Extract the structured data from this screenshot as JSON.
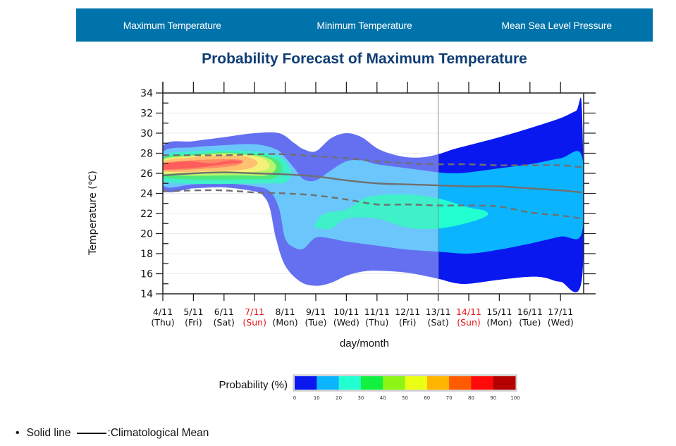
{
  "nav": {
    "tabs": [
      {
        "label": "Maximum Temperature"
      },
      {
        "label": "Minimum Temperature"
      },
      {
        "label": "Mean Sea Level Pressure"
      }
    ]
  },
  "footnote": {
    "bullet": "•",
    "text_before": "Solid line",
    "text_after": ":Climatological Mean"
  },
  "chart_data": {
    "type": "area",
    "title": "Probability Forecast of Maximum Temperature",
    "xlabel": "day/month",
    "ylabel": "Temperature (℃)",
    "ylim": [
      14,
      34
    ],
    "yticks": [
      14,
      16,
      18,
      20,
      22,
      24,
      26,
      28,
      30,
      32,
      34
    ],
    "grid": true,
    "x_categories": [
      {
        "date": "4/11",
        "day": "(Thu)",
        "holiday": false
      },
      {
        "date": "5/11",
        "day": "(Fri)",
        "holiday": false
      },
      {
        "date": "6/11",
        "day": "(Sat)",
        "holiday": false
      },
      {
        "date": "7/11",
        "day": "(Sun)",
        "holiday": true
      },
      {
        "date": "8/11",
        "day": "(Mon)",
        "holiday": false
      },
      {
        "date": "9/11",
        "day": "(Tue)",
        "holiday": false
      },
      {
        "date": "10/11",
        "day": "(Wed)",
        "holiday": false
      },
      {
        "date": "11/11",
        "day": "(Thu)",
        "holiday": false
      },
      {
        "date": "12/11",
        "day": "(Fri)",
        "holiday": false
      },
      {
        "date": "13/11",
        "day": "(Sat)",
        "holiday": false
      },
      {
        "date": "14/11",
        "day": "(Sun)",
        "holiday": true
      },
      {
        "date": "15/11",
        "day": "(Mon)",
        "holiday": false
      },
      {
        "date": "16/11",
        "day": "(Tue)",
        "holiday": false
      },
      {
        "date": "17/11",
        "day": "(Wed)",
        "holiday": false
      }
    ],
    "holiday_color": "#e8141b",
    "divider_day_index": 9,
    "x_extent": [
      0,
      13.7
    ],
    "probability_bands": [
      {
        "level": "0-10%",
        "color_early": "#6470f0",
        "color_late": "#0a18f0",
        "upper": [
          [
            0,
            28.7
          ],
          [
            1,
            29.2
          ],
          [
            2,
            29.6
          ],
          [
            3,
            30.0
          ],
          [
            3.8,
            30.0
          ],
          [
            4.3,
            29.0
          ],
          [
            4.6,
            28.4
          ],
          [
            5,
            28.2
          ],
          [
            5.5,
            29.5
          ],
          [
            6,
            30.0
          ],
          [
            6.5,
            29.6
          ],
          [
            7,
            28.5
          ],
          [
            7.5,
            27.9
          ],
          [
            8,
            27.6
          ],
          [
            8.5,
            27.6
          ],
          [
            9,
            27.9
          ],
          [
            9.5,
            28.4
          ],
          [
            10,
            28.8
          ],
          [
            11,
            29.6
          ],
          [
            12,
            30.5
          ],
          [
            13,
            31.5
          ],
          [
            13.5,
            32.2
          ],
          [
            13.7,
            32.3
          ]
        ],
        "lower": [
          [
            13.7,
            15.5
          ],
          [
            13,
            15.2
          ],
          [
            12.5,
            15.6
          ],
          [
            12,
            15.7
          ],
          [
            11,
            15.4
          ],
          [
            10,
            15.0
          ],
          [
            9.5,
            15.1
          ],
          [
            9,
            15.5
          ],
          [
            8,
            16.1
          ],
          [
            7,
            16.3
          ],
          [
            6.5,
            16.2
          ],
          [
            6,
            15.8
          ],
          [
            5.5,
            15.1
          ],
          [
            5,
            14.8
          ],
          [
            4.5,
            15.2
          ],
          [
            4,
            16.8
          ],
          [
            3.7,
            19.5
          ],
          [
            3.5,
            22.5
          ],
          [
            3.3,
            23.7
          ],
          [
            3,
            24.2
          ],
          [
            2,
            24.6
          ],
          [
            1,
            24.5
          ],
          [
            0,
            24.4
          ]
        ]
      },
      {
        "level": "10-20%",
        "color_early": "#6bc7fb",
        "color_late": "#0ab4ff",
        "upper": [
          [
            0,
            28.1
          ],
          [
            1,
            28.6
          ],
          [
            2,
            28.8
          ],
          [
            3,
            28.9
          ],
          [
            3.7,
            28.4
          ],
          [
            4,
            27.6
          ],
          [
            4.3,
            26.5
          ],
          [
            4.6,
            25.4
          ],
          [
            5,
            25.3
          ],
          [
            5.5,
            26.3
          ],
          [
            6,
            27.2
          ],
          [
            6.5,
            27.3
          ],
          [
            7,
            26.9
          ],
          [
            8,
            26.5
          ],
          [
            9,
            26.1
          ],
          [
            9.5,
            26.0
          ],
          [
            10,
            26.1
          ],
          [
            11,
            26.5
          ],
          [
            12,
            26.9
          ],
          [
            13,
            27.5
          ],
          [
            13.7,
            27.7
          ]
        ],
        "lower": [
          [
            13.7,
            20.1
          ],
          [
            13,
            19.7
          ],
          [
            12,
            19.0
          ],
          [
            11,
            18.4
          ],
          [
            10,
            18.0
          ],
          [
            9,
            18.2
          ],
          [
            8,
            18.4
          ],
          [
            7,
            18.8
          ],
          [
            6,
            19.2
          ],
          [
            5.5,
            19.5
          ],
          [
            5,
            19.6
          ],
          [
            4.6,
            18.5
          ],
          [
            4.3,
            18.6
          ],
          [
            4,
            19.5
          ],
          [
            3.8,
            22.5
          ],
          [
            3.5,
            24.2
          ],
          [
            3,
            24.7
          ],
          [
            2,
            25.0
          ],
          [
            1,
            24.9
          ],
          [
            0,
            24.8
          ]
        ]
      },
      {
        "level": "20-30%",
        "color_early": "#3ff0c8",
        "color_late": "#22ffd0",
        "upper": [
          [
            0,
            27.7
          ],
          [
            1,
            28.2
          ],
          [
            2,
            28.3
          ],
          [
            3,
            28.2
          ],
          [
            3.7,
            27.8
          ],
          [
            4,
            27.2
          ],
          [
            4.2,
            26.0
          ],
          [
            4,
            25.1
          ],
          [
            3.5,
            25.0
          ],
          [
            0,
            25.2
          ]
        ],
        "extra_blob": [
          [
            5,
            21.1
          ],
          [
            5.3,
            22.0
          ],
          [
            6,
            22.4
          ],
          [
            6.5,
            23.4
          ],
          [
            7,
            23.8
          ],
          [
            8,
            23.9
          ],
          [
            9,
            23.5
          ],
          [
            10,
            22.6
          ],
          [
            10.5,
            22.3
          ],
          [
            10.6,
            21.8
          ],
          [
            10,
            21.1
          ],
          [
            9,
            20.5
          ],
          [
            8,
            20.6
          ],
          [
            7,
            21.5
          ],
          [
            6,
            21.5
          ],
          [
            5.5,
            20.5
          ],
          [
            5,
            20.6
          ]
        ]
      },
      {
        "level": "30-40%",
        "color": "#4ce87c",
        "upper": [
          [
            0,
            27.5
          ],
          [
            1,
            27.9
          ],
          [
            2,
            28.1
          ],
          [
            3,
            27.9
          ],
          [
            3.7,
            27.4
          ],
          [
            3.9,
            26.5
          ],
          [
            3.7,
            25.6
          ],
          [
            3,
            25.4
          ],
          [
            0,
            25.6
          ]
        ]
      },
      {
        "level": "40-50%",
        "color": "#b9f56a",
        "upper": [
          [
            0,
            27.4
          ],
          [
            1,
            27.8
          ],
          [
            2,
            28.0
          ],
          [
            3,
            27.8
          ],
          [
            3.5,
            27.4
          ],
          [
            3.7,
            26.6
          ],
          [
            3.4,
            25.8
          ],
          [
            2.5,
            25.8
          ],
          [
            0,
            25.9
          ]
        ]
      },
      {
        "level": "50-60%",
        "color": "#f5f07a",
        "upper": [
          [
            0,
            27.3
          ],
          [
            1,
            27.7
          ],
          [
            2,
            27.9
          ],
          [
            3,
            27.7
          ],
          [
            3.4,
            27.2
          ],
          [
            3.4,
            26.4
          ],
          [
            2.5,
            26.1
          ],
          [
            0,
            26.1
          ]
        ]
      },
      {
        "level": "60-70%",
        "color": "#ffc070",
        "upper": [
          [
            0,
            27.2
          ],
          [
            1,
            27.6
          ],
          [
            2,
            27.8
          ],
          [
            2.8,
            27.6
          ],
          [
            3.1,
            27.0
          ],
          [
            2.7,
            26.4
          ],
          [
            1.5,
            26.2
          ],
          [
            0,
            26.2
          ]
        ]
      },
      {
        "level": "70-80%",
        "color": "#ff8a66",
        "upper": [
          [
            0,
            27.0
          ],
          [
            1,
            27.3
          ],
          [
            2,
            27.4
          ],
          [
            2.6,
            27.3
          ],
          [
            2.4,
            26.8
          ],
          [
            1.5,
            26.5
          ],
          [
            0,
            26.3
          ]
        ]
      },
      {
        "level": "80-90%",
        "color": "#ff5c5c",
        "upper": [
          [
            0,
            26.9
          ],
          [
            0.8,
            27.2
          ],
          [
            1.6,
            27.0
          ],
          [
            2.2,
            27.3
          ],
          [
            2.6,
            27.1
          ],
          [
            2,
            26.9
          ],
          [
            1.2,
            26.6
          ],
          [
            0,
            26.4
          ]
        ]
      }
    ],
    "lines": [
      {
        "name": "Climatological Mean",
        "style": "solid",
        "color": "#707070",
        "values": [
          [
            0,
            25.8
          ],
          [
            1,
            26.0
          ],
          [
            2,
            26.1
          ],
          [
            3,
            26.0
          ],
          [
            4,
            25.9
          ],
          [
            5,
            25.7
          ],
          [
            6,
            25.3
          ],
          [
            7,
            25.0
          ],
          [
            8,
            24.9
          ],
          [
            9,
            24.8
          ],
          [
            10,
            24.7
          ],
          [
            11,
            24.7
          ],
          [
            12,
            24.5
          ],
          [
            13,
            24.3
          ],
          [
            13.7,
            24.1
          ]
        ]
      },
      {
        "name": "Upper dashed",
        "style": "dashed",
        "color": "#707070",
        "values": [
          [
            0,
            27.8
          ],
          [
            1,
            27.8
          ],
          [
            2,
            27.8
          ],
          [
            3,
            27.9
          ],
          [
            4,
            27.9
          ],
          [
            5,
            27.7
          ],
          [
            6,
            27.5
          ],
          [
            7,
            27.2
          ],
          [
            8,
            27.0
          ],
          [
            9,
            26.9
          ],
          [
            10,
            26.9
          ],
          [
            11,
            26.8
          ],
          [
            12,
            26.8
          ],
          [
            13,
            26.8
          ],
          [
            13.7,
            26.6
          ]
        ]
      },
      {
        "name": "Lower dashed",
        "style": "dashed",
        "color": "#707070",
        "values": [
          [
            0,
            24.2
          ],
          [
            1,
            24.3
          ],
          [
            2,
            24.3
          ],
          [
            3,
            24.1
          ],
          [
            4,
            24.0
          ],
          [
            5,
            23.8
          ],
          [
            6,
            23.4
          ],
          [
            7,
            22.9
          ],
          [
            8,
            22.9
          ],
          [
            9,
            22.8
          ],
          [
            10,
            22.8
          ],
          [
            11,
            22.7
          ],
          [
            12,
            22.1
          ],
          [
            13,
            21.8
          ],
          [
            13.7,
            21.5
          ]
        ]
      }
    ],
    "colorbar": {
      "label": "Probability (%)",
      "ticks": [
        "0",
        "10",
        "20",
        "30",
        "40",
        "50",
        "60",
        "70",
        "80",
        "90",
        "100"
      ],
      "colors": [
        "#0a18f0",
        "#0ab4ff",
        "#22ffd0",
        "#12f040",
        "#8cf514",
        "#ebff14",
        "#ffb400",
        "#ff5a00",
        "#ff0a0a",
        "#b40000"
      ]
    }
  }
}
